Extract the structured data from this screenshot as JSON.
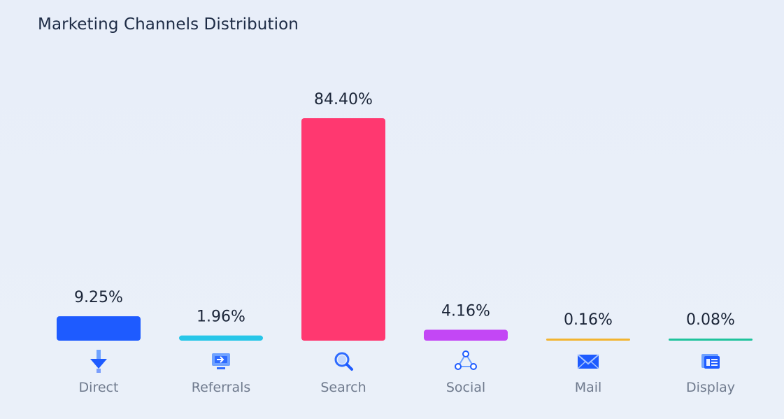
{
  "title": "Marketing Channels Distribution",
  "chart_data": {
    "type": "bar",
    "categories": [
      "Direct",
      "Referrals",
      "Search",
      "Social",
      "Mail",
      "Display"
    ],
    "values": [
      9.25,
      1.96,
      84.4,
      4.16,
      0.16,
      0.08
    ],
    "value_labels": [
      "9.25%",
      "1.96%",
      "84.40%",
      "4.16%",
      "0.16%",
      "0.08%"
    ],
    "colors": [
      "#1e5bff",
      "#27c6e8",
      "#ff3870",
      "#c347f5",
      "#f2b431",
      "#1fc39c"
    ],
    "icons": [
      "arrow-down-icon",
      "referral-monitor-icon",
      "search-icon",
      "social-share-icon",
      "mail-icon",
      "display-window-icon"
    ],
    "ylim": [
      0,
      84.4
    ],
    "grid": false,
    "xlabel": "",
    "ylabel": ""
  }
}
